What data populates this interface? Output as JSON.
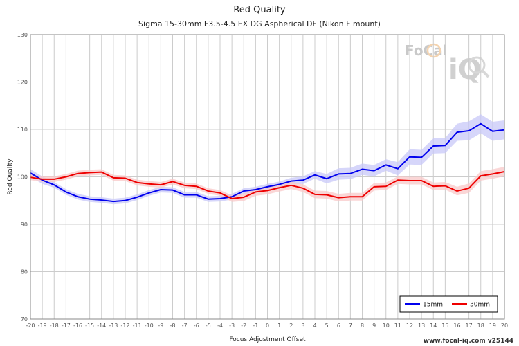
{
  "chart_data": {
    "type": "line",
    "title": "Red Quality",
    "subtitle": "Sigma 15-30mm F3.5-4.5 EX DG Aspherical DF (Nikon F mount)",
    "xlabel": "Focus Adjustment Offset",
    "ylabel": "Red Quality",
    "xlim": [
      -20,
      20
    ],
    "ylim": [
      70,
      130
    ],
    "yticks": [
      70,
      80,
      90,
      100,
      110,
      120,
      130
    ],
    "x": [
      -20,
      -19,
      -18,
      -17,
      -16,
      -15,
      -14,
      -13,
      -12,
      -11,
      -10,
      -9,
      -8,
      -7,
      -6,
      -5,
      -4,
      -3,
      -2,
      -1,
      0,
      1,
      2,
      3,
      4,
      5,
      6,
      7,
      8,
      9,
      10,
      11,
      12,
      13,
      14,
      15,
      16,
      17,
      18,
      19,
      20
    ],
    "grid": true,
    "legend_position": "bottom-right",
    "series": [
      {
        "name": "15mm",
        "color": "#0000ee",
        "band_color": "#c8c8f8",
        "band_width": [
          0.8,
          0.8,
          0.6,
          0.6,
          0.6,
          0.6,
          0.6,
          0.6,
          0.6,
          0.6,
          0.6,
          0.6,
          0.6,
          0.6,
          0.6,
          0.6,
          0.6,
          0.6,
          0.6,
          0.6,
          0.6,
          0.6,
          0.7,
          0.8,
          0.8,
          1.0,
          1.2,
          1.2,
          1.2,
          1.2,
          1.2,
          1.4,
          1.6,
          1.6,
          1.6,
          1.6,
          1.8,
          2.0,
          2.0,
          2.0,
          2.0
        ],
        "values": [
          100.8,
          99.3,
          98.3,
          96.8,
          95.8,
          95.3,
          95.1,
          94.8,
          95.0,
          95.7,
          96.6,
          97.3,
          97.2,
          96.2,
          96.2,
          95.3,
          95.4,
          95.8,
          97.0,
          97.3,
          97.9,
          98.4,
          99.1,
          99.3,
          100.4,
          99.6,
          100.6,
          100.7,
          101.6,
          101.3,
          102.5,
          101.7,
          104.2,
          104.1,
          106.5,
          106.6,
          109.4,
          109.7,
          111.2,
          109.6,
          109.9
        ]
      },
      {
        "name": "30mm",
        "color": "#ee0000",
        "band_color": "#f8c8c8",
        "band_width": [
          0.6,
          0.6,
          0.6,
          0.6,
          0.6,
          0.6,
          0.6,
          0.6,
          0.6,
          0.6,
          0.6,
          0.6,
          0.6,
          0.6,
          0.6,
          0.6,
          0.6,
          0.7,
          0.8,
          0.8,
          0.8,
          0.8,
          0.8,
          0.8,
          0.8,
          0.8,
          0.8,
          0.8,
          0.8,
          0.8,
          0.8,
          0.8,
          0.8,
          0.8,
          0.8,
          0.8,
          0.9,
          1.0,
          1.0,
          1.0,
          1.0
        ],
        "values": [
          99.9,
          99.5,
          99.5,
          100.0,
          100.7,
          100.9,
          101.0,
          99.8,
          99.7,
          98.8,
          98.5,
          98.3,
          99.0,
          98.2,
          98.0,
          97.0,
          96.6,
          95.4,
          95.7,
          96.8,
          97.1,
          97.7,
          98.2,
          97.6,
          96.3,
          96.2,
          95.6,
          95.8,
          95.8,
          97.9,
          98.0,
          99.3,
          99.2,
          99.2,
          98.0,
          98.1,
          97.0,
          97.6,
          100.2,
          100.6,
          101.1
        ]
      }
    ]
  },
  "watermark": {
    "brand_top": "FoCal",
    "brand_bottom": "iQ"
  },
  "footer": {
    "text": "www.focal-iq.com  v25144"
  }
}
